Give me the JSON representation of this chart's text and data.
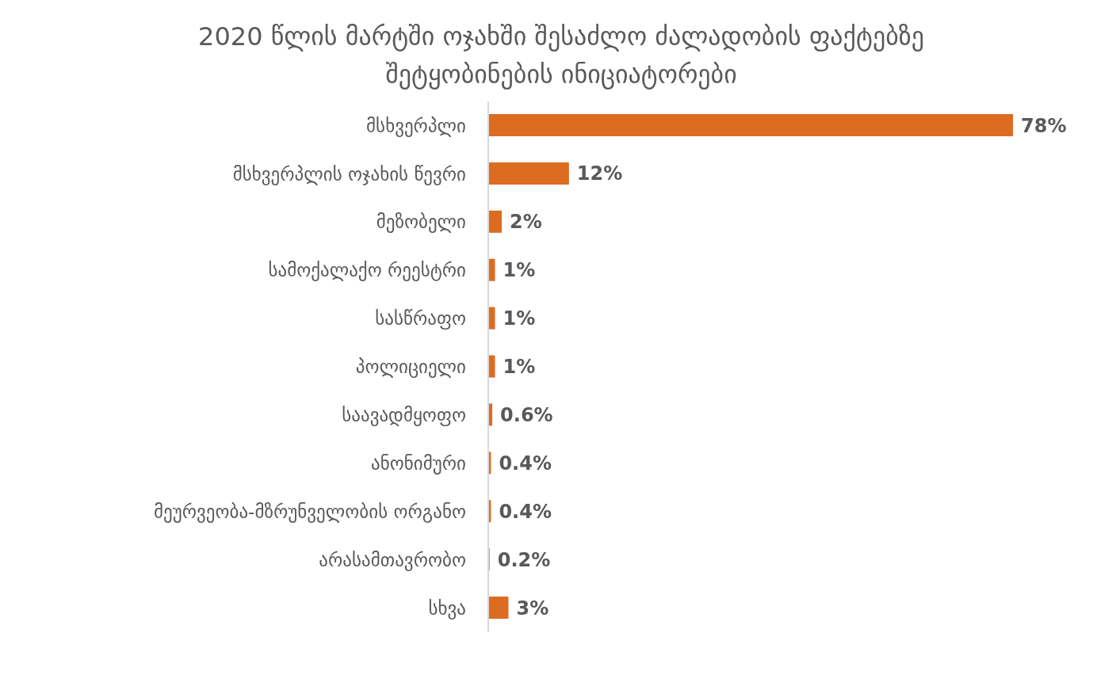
{
  "chart_data": {
    "type": "bar",
    "orientation": "horizontal",
    "title": "2020 წლის მარტში ოჯახში შესაძლო ძალადობის ფაქტებზე შეტყობინების ინიციატორები",
    "categories": [
      "მსხვერპლი",
      "მსხვერპლის ოჯახის წევრი",
      "მეზობელი",
      "სამოქალაქო რეესტრი",
      "სასწრაფო",
      "პოლიციელი",
      "საავადმყოფო",
      "ანონიმური",
      "მეურვეობა-მზრუნველობის ორგანო",
      "არასამთავრობო",
      "სხვა"
    ],
    "values": [
      78,
      12,
      2,
      1,
      1,
      1,
      0.6,
      0.4,
      0.4,
      0.2,
      3
    ],
    "value_labels": [
      "78%",
      "12%",
      "2%",
      "1%",
      "1%",
      "1%",
      "0.6%",
      "0.4%",
      "0.4%",
      "0.2%",
      "3%"
    ],
    "color": "#dd6b20",
    "grid": false,
    "legend": false
  }
}
